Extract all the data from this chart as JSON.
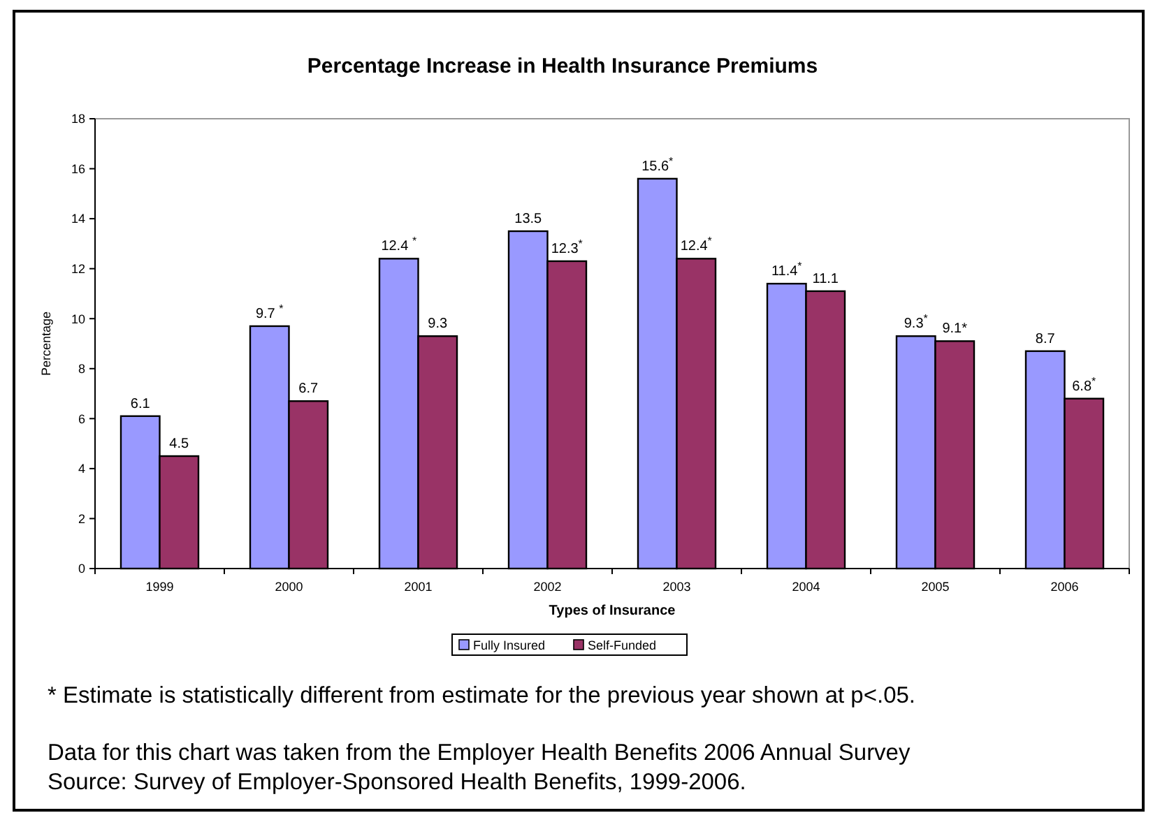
{
  "chart_data": {
    "type": "bar",
    "title": "Percentage Increase in Health Insurance Premiums",
    "xlabel": "Types of Insurance",
    "ylabel": "Percentage",
    "categories": [
      "1999",
      "2000",
      "2001",
      "2002",
      "2003",
      "2004",
      "2005",
      "2006"
    ],
    "series": [
      {
        "name": "Fully Insured",
        "color": "#9999ff",
        "values": [
          6.1,
          9.7,
          12.4,
          13.5,
          15.6,
          11.4,
          9.3,
          8.7
        ],
        "value_labels": [
          "6.1",
          "9.7 $^{*}$",
          "12.4 $^{*}$",
          "13.5",
          "15.6$^{*}$",
          "11.4$^{*}$",
          "9.3$^{*}$",
          "8.7"
        ]
      },
      {
        "name": "Self-Funded",
        "color": "#993366",
        "values": [
          4.5,
          6.7,
          9.3,
          12.3,
          12.4,
          11.1,
          9.1,
          6.8
        ],
        "value_labels": [
          "4.5",
          "6.7",
          "9.3",
          "12.3$^{*}$",
          "12.4$^{*}$",
          "11.1",
          "9.1*",
          "6.8$^{*}$"
        ]
      }
    ],
    "ylim": [
      0,
      18
    ],
    "yticks": [
      0,
      2,
      4,
      6,
      8,
      10,
      12,
      14,
      16,
      18
    ],
    "grid": false,
    "legend": "bottom",
    "annotations": [
      "* Estimate is statistically different from estimate for the previous year shown at p<.05.",
      "Data for this chart was taken from the Employer Health Benefits 2006 Annual Survey",
      "Source: Survey of Employer-Sponsored Health Benefits, 1999-2006."
    ]
  }
}
